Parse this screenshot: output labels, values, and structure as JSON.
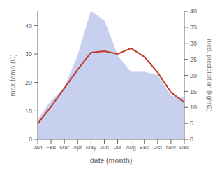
{
  "chart_data": {
    "type": "line",
    "xlabel": "date (month)",
    "ylabel": "max temp (C)",
    "y2label": "med. precipitation (kg/m2)",
    "categories": [
      "Jan",
      "Feb",
      "Mar",
      "Apr",
      "May",
      "Jun",
      "Jul",
      "Aug",
      "Sep",
      "Oct",
      "Nov",
      "Dec"
    ],
    "series": [
      {
        "type": "area",
        "color": "#c8d0f0",
        "axis": "y2",
        "values": [
          6.0,
          12.0,
          16.0,
          26.0,
          40.0,
          37.0,
          26.0,
          21.0,
          21.0,
          20.0,
          13.5,
          13.0
        ]
      },
      {
        "type": "line",
        "color": "#c0392b",
        "values": [
          5.5,
          11.5,
          18.0,
          24.5,
          30.5,
          31.0,
          30.0,
          32.0,
          29.0,
          23.5,
          16.5,
          13.0
        ]
      }
    ],
    "ylim": [
      0,
      45
    ],
    "yticks": [
      0,
      10,
      20,
      30,
      40
    ],
    "y2lim": [
      0,
      40
    ],
    "y2ticks": [
      0,
      5,
      10,
      15,
      20,
      25,
      30,
      35,
      40
    ],
    "grid": false
  }
}
